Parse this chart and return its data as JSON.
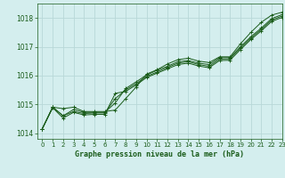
{
  "title": "Graphe pression niveau de la mer (hPa)",
  "bg_color": "#d4eeee",
  "grid_color": "#b8d8d8",
  "line_color": "#1a5c1a",
  "xlim": [
    -0.5,
    23
  ],
  "ylim": [
    1013.8,
    1018.5
  ],
  "yticks": [
    1014,
    1015,
    1016,
    1017,
    1018
  ],
  "xticks": [
    0,
    1,
    2,
    3,
    4,
    5,
    6,
    7,
    8,
    9,
    10,
    11,
    12,
    13,
    14,
    15,
    16,
    17,
    18,
    19,
    20,
    21,
    22,
    23
  ],
  "series": [
    [
      1014.15,
      1014.9,
      1014.85,
      1014.9,
      1014.75,
      1014.75,
      1014.75,
      1014.8,
      1015.2,
      1015.6,
      1016.05,
      1016.2,
      1016.4,
      1016.55,
      1016.6,
      1016.5,
      1016.45,
      1016.65,
      1016.65,
      1017.1,
      1017.5,
      1017.85,
      1018.1,
      1018.2
    ],
    [
      1014.15,
      1014.9,
      1014.6,
      1014.82,
      1014.72,
      1014.72,
      1014.72,
      1015.05,
      1015.55,
      1015.78,
      1016.02,
      1016.18,
      1016.32,
      1016.48,
      1016.52,
      1016.43,
      1016.38,
      1016.62,
      1016.62,
      1017.0,
      1017.35,
      1017.65,
      1017.98,
      1018.12
    ],
    [
      1014.15,
      1014.9,
      1014.6,
      1014.75,
      1014.68,
      1014.7,
      1014.7,
      1015.2,
      1015.5,
      1015.72,
      1015.97,
      1016.12,
      1016.28,
      1016.43,
      1016.48,
      1016.38,
      1016.32,
      1016.57,
      1016.58,
      1016.95,
      1017.3,
      1017.6,
      1017.93,
      1018.07
    ],
    [
      1014.15,
      1014.88,
      1014.52,
      1014.72,
      1014.63,
      1014.65,
      1014.65,
      1015.38,
      1015.45,
      1015.67,
      1015.93,
      1016.08,
      1016.23,
      1016.38,
      1016.43,
      1016.33,
      1016.27,
      1016.52,
      1016.53,
      1016.9,
      1017.25,
      1017.55,
      1017.88,
      1018.02
    ]
  ]
}
